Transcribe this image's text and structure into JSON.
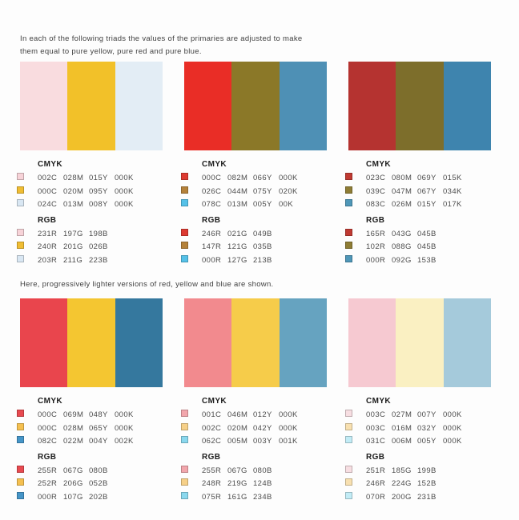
{
  "section1": {
    "intro": "In each of the following triads the values of the primaries are adjusted to make them equal to pure yellow, pure red and pure blue.",
    "groups": [
      {
        "cmyk_label": "CMYK",
        "rgb_label": "RGB",
        "swatch_colors": [
          "#f9dcdf",
          "#f2c129",
          "#e3edf5"
        ],
        "cmyk_rows": [
          {
            "chip": "#f7d3d8",
            "values": [
              "002C",
              "028M",
              "015Y",
              "000K"
            ]
          },
          {
            "chip": "#f0bd33",
            "values": [
              "000C",
              "020M",
              "095Y",
              "000K"
            ]
          },
          {
            "chip": "#d9e7f3",
            "values": [
              "024C",
              "013M",
              "008Y",
              "000K"
            ]
          }
        ],
        "rgb_rows": [
          {
            "chip": "#f7d3d8",
            "values": [
              "231R",
              "197G",
              "198B"
            ]
          },
          {
            "chip": "#f0bd33",
            "values": [
              "240R",
              "201G",
              "026B"
            ]
          },
          {
            "chip": "#d9e7f3",
            "values": [
              "203R",
              "211G",
              "223B"
            ]
          }
        ]
      },
      {
        "cmyk_label": "CMYK",
        "rgb_label": "RGB",
        "swatch_colors": [
          "#e92d26",
          "#8b7828",
          "#4e90b5"
        ],
        "cmyk_rows": [
          {
            "chip": "#dd3a31",
            "values": [
              "000C",
              "082M",
              "066Y",
              "000K"
            ]
          },
          {
            "chip": "#b5823a",
            "values": [
              "026C",
              "044M",
              "075Y",
              "020K"
            ]
          },
          {
            "chip": "#55c1e8",
            "values": [
              "078C",
              "013M",
              "005Y",
              "00K"
            ]
          }
        ],
        "rgb_rows": [
          {
            "chip": "#dd3a31",
            "values": [
              "246R",
              "021G",
              "049B"
            ]
          },
          {
            "chip": "#b5823a",
            "values": [
              "147R",
              "121G",
              "035B"
            ]
          },
          {
            "chip": "#55c1e8",
            "values": [
              "000R",
              "127G",
              "213B"
            ]
          }
        ]
      },
      {
        "cmyk_label": "CMYK",
        "rgb_label": "RGB",
        "swatch_colors": [
          "#b53330",
          "#7d6e2b",
          "#3e84ae"
        ],
        "cmyk_rows": [
          {
            "chip": "#c03a32",
            "values": [
              "023C",
              "080M",
              "069Y",
              "015K"
            ]
          },
          {
            "chip": "#8f7d35",
            "values": [
              "039C",
              "047M",
              "067Y",
              "034K"
            ]
          },
          {
            "chip": "#4f97b8",
            "values": [
              "083C",
              "026M",
              "015Y",
              "017K"
            ]
          }
        ],
        "rgb_rows": [
          {
            "chip": "#c03a32",
            "values": [
              "165R",
              "043G",
              "045B"
            ]
          },
          {
            "chip": "#8f7d35",
            "values": [
              "102R",
              "088G",
              "045B"
            ]
          },
          {
            "chip": "#4f97b8",
            "values": [
              "000R",
              "092G",
              "153B"
            ]
          }
        ]
      }
    ]
  },
  "section2": {
    "intro": "Here, progressively lighter versions of red, yellow and blue are shown.",
    "groups": [
      {
        "cmyk_label": "CMYK",
        "rgb_label": "RGB",
        "swatch_colors": [
          "#e9454d",
          "#f4c631",
          "#35789e"
        ],
        "cmyk_rows": [
          {
            "chip": "#e84a50",
            "values": [
              "000C",
              "069M",
              "048Y",
              "000K"
            ]
          },
          {
            "chip": "#f5c050",
            "values": [
              "000C",
              "028M",
              "065Y",
              "000K"
            ]
          },
          {
            "chip": "#4595c8",
            "values": [
              "082C",
              "022M",
              "004Y",
              "002K"
            ]
          }
        ],
        "rgb_rows": [
          {
            "chip": "#e84a50",
            "values": [
              "255R",
              "067G",
              "080B"
            ]
          },
          {
            "chip": "#f5c050",
            "values": [
              "252R",
              "206G",
              "052B"
            ]
          },
          {
            "chip": "#4595c8",
            "values": [
              "000R",
              "107G",
              "202B"
            ]
          }
        ]
      },
      {
        "cmyk_label": "CMYK",
        "rgb_label": "RGB",
        "swatch_colors": [
          "#f28a8e",
          "#f6cc4a",
          "#66a3c0"
        ],
        "cmyk_rows": [
          {
            "chip": "#f2a6ac",
            "values": [
              "001C",
              "046M",
              "012Y",
              "000K"
            ]
          },
          {
            "chip": "#f6d088",
            "values": [
              "002C",
              "020M",
              "042Y",
              "000K"
            ]
          },
          {
            "chip": "#8ad8ee",
            "values": [
              "062C",
              "005M",
              "003Y",
              "001K"
            ]
          }
        ],
        "rgb_rows": [
          {
            "chip": "#f2a6ac",
            "values": [
              "255R",
              "067G",
              "080B"
            ]
          },
          {
            "chip": "#f6d088",
            "values": [
              "248R",
              "219G",
              "124B"
            ]
          },
          {
            "chip": "#8ad8ee",
            "values": [
              "075R",
              "161G",
              "234B"
            ]
          }
        ]
      },
      {
        "cmyk_label": "CMYK",
        "rgb_label": "RGB",
        "swatch_colors": [
          "#f6c9d1",
          "#faf0c2",
          "#a5cadb"
        ],
        "cmyk_rows": [
          {
            "chip": "#f7dee2",
            "values": [
              "003C",
              "027M",
              "007Y",
              "000K"
            ]
          },
          {
            "chip": "#f8e0b0",
            "values": [
              "003C",
              "016M",
              "032Y",
              "000K"
            ]
          },
          {
            "chip": "#c2ecf6",
            "values": [
              "031C",
              "006M",
              "005Y",
              "000K"
            ]
          }
        ],
        "rgb_rows": [
          {
            "chip": "#f7dee2",
            "values": [
              "251R",
              "185G",
              "199B"
            ]
          },
          {
            "chip": "#f8e0b0",
            "values": [
              "246R",
              "224G",
              "152B"
            ]
          },
          {
            "chip": "#c2ecf6",
            "values": [
              "070R",
              "200G",
              "231B"
            ]
          }
        ]
      }
    ]
  }
}
